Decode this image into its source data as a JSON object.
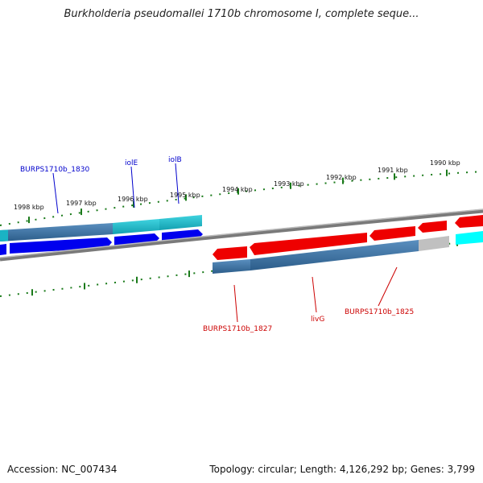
{
  "title": "Burkholderia pseudomallei 1710b chromosome I, complete seque...",
  "footer": {
    "accession": "Accession: NC_007434",
    "topology": "Topology: circular; Length: 4,126,292 bp; Genes: 3,799"
  },
  "colors": {
    "forward_cds": "#0000ee",
    "reverse_cds": "#ee0000",
    "gene_bar": "#3f77a5",
    "cyan_gene": "#1ab3c4",
    "backbone": "#888888",
    "tick": "#1a7a1a"
  },
  "tick_labels": [
    "1998 kbp",
    "1997 kbp",
    "1996 kbp",
    "1995 kbp",
    "1994 kbp",
    "1993 kbp",
    "1992 kbp",
    "1991 kbp",
    "1990 kbp"
  ],
  "gene_labels": {
    "forward": [
      "BURPS1710b_1830",
      "iolE",
      "iolB"
    ],
    "reverse": [
      "BURPS1710b_1827",
      "livG",
      "BURPS1710b_1825"
    ]
  }
}
